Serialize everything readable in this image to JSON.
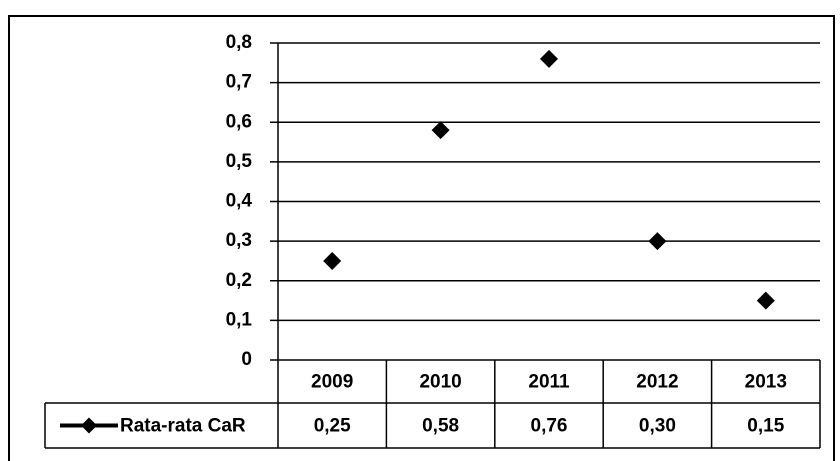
{
  "chart_data": {
    "type": "line",
    "categories": [
      "2009",
      "2010",
      "2011",
      "2012",
      "2013"
    ],
    "series": [
      {
        "name": "Rata-rata CaR",
        "color": "#000000",
        "values": [
          0.25,
          0.58,
          0.76,
          0.3,
          0.15
        ],
        "value_labels": [
          "0,25",
          "0,58",
          "0,76",
          "0,30",
          "0,15"
        ]
      }
    ],
    "ylim": [
      0,
      0.8
    ],
    "yticks": [
      0,
      {
        "value": 0.1,
        "label": "0,1"
      },
      {
        "value": 0.2,
        "label": "0,2"
      },
      {
        "value": 0.3,
        "label": "0,3"
      },
      {
        "value": 0.4,
        "label": "0,4"
      },
      {
        "value": 0.5,
        "label": "0,5"
      },
      {
        "value": 0.6,
        "label": "0,6"
      },
      {
        "value": 0.7,
        "label": "0,7"
      },
      {
        "value": 0.8,
        "label": "0,8"
      }
    ],
    "grid": true
  }
}
